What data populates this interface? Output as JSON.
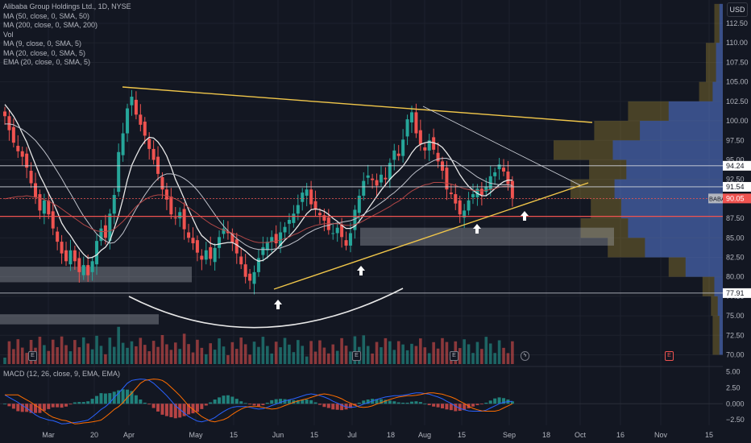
{
  "indicators": [
    "Alibaba Group Holdings Ltd., 1D, NYSE",
    "MA (50, close, 0, SMA, 50)",
    "MA (200, close, 0, SMA, 200)",
    "Vol",
    "MA (9, close, 0, SMA, 5)",
    "MA (20, close, 0, SMA, 5)",
    "EMA (20, close, 0, SMA, 5)"
  ],
  "currency": "USD",
  "macd_title": "MACD (12, 26, close, 9, EMA, EMA)",
  "events": {
    "earnings": "E",
    "dividend": "ϟ"
  },
  "colors": {
    "up": "#26a69a",
    "down": "#ef5350",
    "trend": "#f0c64a",
    "bg": "#131722"
  },
  "chart_data": {
    "type": "candlestick",
    "symbol": "BABA",
    "timeframe": "1D",
    "price_axis": [
      "112.50",
      "110.00",
      "107.50",
      "105.00",
      "102.50",
      "100.00",
      "97.50",
      "95.00",
      "92.50",
      "90.00",
      "87.50",
      "85.00",
      "82.50",
      "80.00",
      "77.50",
      "75.00",
      "72.50",
      "70.00"
    ],
    "price_range": [
      68.5,
      115.5
    ],
    "x_axis": [
      "Mar",
      "20",
      "Apr",
      "May",
      "15",
      "Jun",
      "15",
      "Jul",
      "18",
      "Aug",
      "15",
      "Sep",
      "18",
      "Oct",
      "16",
      "Nov",
      "15"
    ],
    "level_labels": [
      {
        "value": 94.24,
        "label": "94.24",
        "style": "outline"
      },
      {
        "value": 91.54,
        "label": "91.54",
        "style": "outline"
      },
      {
        "value": 90.05,
        "label": "90.05",
        "tag": "BABA",
        "style": "last"
      },
      {
        "value": 77.91,
        "label": "77.91",
        "style": "outline"
      }
    ],
    "red_level": 87.75,
    "closes": [
      100.6,
      98.8,
      97.2,
      96.1,
      95.4,
      94.0,
      92.0,
      90.2,
      88.5,
      89.8,
      88.0,
      86.2,
      84.5,
      83.0,
      82.0,
      83.4,
      82.0,
      80.6,
      81.5,
      80.2,
      82.0,
      84.6,
      86.2,
      85.0,
      88.1,
      90.5,
      96.0,
      98.4,
      101.6,
      103.1,
      100.8,
      99.5,
      98.1,
      96.4,
      95.0,
      93.2,
      91.2,
      89.9,
      88.0,
      87.5,
      88.3,
      86.1,
      85.0,
      84.3,
      83.1,
      82.2,
      83.4,
      82.3,
      83.7,
      85.1,
      86.2,
      85.6,
      84.4,
      83.0,
      81.6,
      80.0,
      79.5,
      80.6,
      82.4,
      83.8,
      84.5,
      85.1,
      84.3,
      85.7,
      86.4,
      87.3,
      88.1,
      89.2,
      90.8,
      91.2,
      89.3,
      88.6,
      87.9,
      87.2,
      86.0,
      85.6,
      86.3,
      85.1,
      84.0,
      85.6,
      88.6,
      90.4,
      92.3,
      93.0,
      92.4,
      91.7,
      93.1,
      92.5,
      94.6,
      96.2,
      95.5,
      97.6,
      100.2,
      101.1,
      98.4,
      97.0,
      96.2,
      97.5,
      96.3,
      94.8,
      93.6,
      91.2,
      90.6,
      89.4,
      88.0,
      88.5,
      89.8,
      90.6,
      91.3,
      90.5,
      91.6,
      92.9,
      93.4,
      94.4,
      93.5,
      91.9,
      90.1
    ],
    "ma9": [
      102.1,
      101.4,
      100.6,
      99.6,
      98.4,
      97.3,
      95.8,
      94.4,
      93.0,
      91.9,
      90.7,
      89.6,
      88.3,
      86.9,
      86.0,
      85.3,
      84.4,
      83.6,
      82.9,
      82.4,
      82.5,
      82.8,
      83.4,
      83.8,
      84.6,
      86.2,
      87.9,
      90.0,
      92.4,
      94.3,
      95.5,
      96.6,
      97.4,
      97.9,
      97.8,
      97.3,
      96.5,
      95.5,
      94.1,
      92.5,
      91.3,
      90.0,
      88.6,
      87.4,
      86.2,
      85.3,
      84.8,
      84.3,
      84.1,
      84.2,
      84.3,
      84.4,
      84.4,
      84.1,
      83.7,
      83.3,
      82.8,
      82.3,
      82.0,
      82.1,
      82.5,
      83.0,
      83.5,
      84.1,
      84.7,
      85.2,
      85.8,
      86.5,
      87.3,
      88.1,
      88.6,
      88.7,
      88.6,
      88.4,
      88.0,
      87.5,
      87.1,
      86.6,
      86.2,
      86.2,
      86.5,
      87.1,
      87.9,
      88.7,
      89.5,
      90.3,
      91.1,
      91.8,
      92.5,
      93.1,
      93.6,
      94.2,
      95.0,
      95.9,
      96.6,
      97.0,
      97.2,
      97.3,
      97.2,
      97.0,
      96.6,
      95.9,
      95.1,
      94.1,
      93.1,
      92.3,
      91.6,
      91.1,
      90.7,
      90.4,
      90.4,
      90.8,
      91.3,
      91.8,
      92.2,
      92.4,
      92.4
    ],
    "ma20": [
      99.6,
      99.6,
      99.5,
      99.2,
      98.9,
      98.5,
      98.0,
      97.5,
      96.8,
      96.1,
      95.3,
      94.4,
      93.5,
      92.6,
      91.6,
      90.7,
      89.7,
      88.7,
      87.8,
      87.0,
      86.2,
      85.5,
      85.0,
      84.6,
      84.3,
      84.4,
      84.9,
      85.6,
      86.6,
      87.7,
      88.7,
      89.6,
      90.5,
      91.3,
      92.0,
      92.6,
      93.0,
      93.2,
      93.2,
      93.1,
      92.9,
      92.6,
      92.2,
      91.7,
      91.1,
      90.4,
      89.6,
      88.8,
      88.0,
      87.2,
      86.5,
      85.9,
      85.4,
      84.9,
      84.5,
      84.1,
      83.8,
      83.6,
      83.5,
      83.5,
      83.5,
      83.5,
      83.6,
      83.7,
      83.9,
      84.1,
      84.4,
      84.7,
      85.1,
      85.5,
      85.8,
      86.1,
      86.3,
      86.5,
      86.6,
      86.8,
      86.9,
      87.0,
      87.1,
      87.2,
      87.4,
      87.7,
      88.0,
      88.4,
      88.7,
      89.1,
      89.5,
      89.9,
      90.4,
      90.8,
      91.3,
      91.8,
      92.4,
      93.0,
      93.5,
      93.9,
      94.3,
      94.6,
      94.9,
      95.1,
      95.2,
      95.2,
      95.0,
      94.8,
      94.4,
      94.0,
      93.6,
      93.2,
      92.8,
      92.5,
      92.2,
      92.0,
      91.9,
      91.8,
      91.8,
      91.8,
      91.7
    ],
    "ema20": [
      90.0,
      90.1,
      90.2,
      90.3,
      90.3,
      90.4,
      90.3,
      90.2,
      90.1,
      89.9,
      89.7,
      89.4,
      89.1,
      88.7,
      88.3,
      87.9,
      87.5,
      87.1,
      86.7,
      86.4,
      86.1,
      85.9,
      85.8,
      85.8,
      85.9,
      86.1,
      86.6,
      87.1,
      87.7,
      88.4,
      89.0,
      89.5,
      89.9,
      90.2,
      90.4,
      90.5,
      90.5,
      90.4,
      90.2,
      90.0,
      89.7,
      89.3,
      88.9,
      88.5,
      88.1,
      87.6,
      87.2,
      86.8,
      86.5,
      86.2,
      86.0,
      85.8,
      85.6,
      85.4,
      85.2,
      84.9,
      84.7,
      84.5,
      84.4,
      84.4,
      84.4,
      84.5,
      84.6,
      84.7,
      84.9,
      85.1,
      85.4,
      85.6,
      85.9,
      86.2,
      86.4,
      86.6,
      86.7,
      86.8,
      86.8,
      86.8,
      86.8,
      86.7,
      86.6,
      86.6,
      86.7,
      86.9,
      87.2,
      87.5,
      87.8,
      88.1,
      88.4,
      88.7,
      89.0,
      89.4,
      89.7,
      90.1,
      90.6,
      91.0,
      91.3,
      91.6,
      91.8,
      91.9,
      92.1,
      92.1,
      92.1,
      92.0,
      91.9,
      91.7,
      91.5,
      91.3,
      91.2,
      91.1,
      91.1,
      91.0,
      91.1,
      91.2,
      91.3,
      91.5,
      91.6,
      91.6,
      91.5
    ],
    "volume_profile": [
      {
        "low": 110.0,
        "high": 115.0,
        "total": 0.05,
        "up": 0.02
      },
      {
        "low": 105.0,
        "high": 110.0,
        "total": 0.1,
        "up": 0.04
      },
      {
        "low": 102.5,
        "high": 105.0,
        "total": 0.14,
        "up": 0.06
      },
      {
        "low": 100.0,
        "high": 102.5,
        "total": 0.56,
        "up": 0.32
      },
      {
        "low": 97.5,
        "high": 100.0,
        "total": 0.76,
        "up": 0.49
      },
      {
        "low": 95.0,
        "high": 97.5,
        "total": 1.0,
        "up": 0.65
      },
      {
        "low": 92.5,
        "high": 95.0,
        "total": 0.79,
        "up": 0.57
      },
      {
        "low": 90.0,
        "high": 92.5,
        "total": 0.9,
        "up": 0.64
      },
      {
        "low": 87.5,
        "high": 90.0,
        "total": 0.78,
        "up": 0.6
      },
      {
        "low": 85.0,
        "high": 87.5,
        "total": 0.84,
        "up": 0.56
      },
      {
        "low": 82.5,
        "high": 85.0,
        "total": 0.68,
        "up": 0.46
      },
      {
        "low": 80.0,
        "high": 82.5,
        "total": 0.32,
        "up": 0.22
      },
      {
        "low": 77.5,
        "high": 80.0,
        "total": 0.12,
        "up": 0.05
      },
      {
        "low": 75.0,
        "high": 77.5,
        "total": 0.07,
        "up": 0.03
      },
      {
        "low": 70.0,
        "high": 75.0,
        "total": 0.06,
        "up": 0.02
      }
    ],
    "macd_axis": [
      "5.00",
      "2.50",
      "0.000",
      "−2.50"
    ],
    "macd_range": [
      -3.6,
      5.8
    ]
  }
}
